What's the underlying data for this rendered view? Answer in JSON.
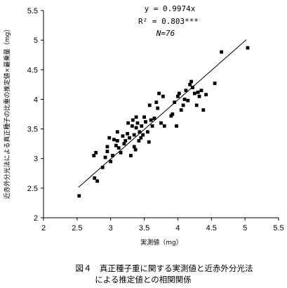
{
  "chart_data": {
    "type": "scatter",
    "xlabel": "実測値（mg）",
    "ylabel": "近赤外分光法による真正種子の比重の推定値×最乗量（mg）",
    "xlim": [
      2,
      5.5
    ],
    "ylim": [
      2,
      5.5
    ],
    "x_ticks": [
      "2",
      "2.5",
      "3",
      "3.5",
      "4",
      "4.5",
      "5",
      "5.5"
    ],
    "y_ticks": [
      "2",
      "2.5",
      "3",
      "3.5",
      "4",
      "4.5",
      "5",
      "5.5"
    ],
    "annotations": [
      "y = 0.9974x",
      "R² = 0.803***",
      "N=76"
    ],
    "regression_line": {
      "slope": 0.9974,
      "x_range": [
        2.52,
        5.02
      ]
    },
    "caption": [
      "図４　真正種子重に関する実測値と近赤外分光法",
      "による推定値との相関関係"
    ],
    "points": [
      [
        2.53,
        2.37
      ],
      [
        2.75,
        3.05
      ],
      [
        2.78,
        3.1
      ],
      [
        2.76,
        2.67
      ],
      [
        2.8,
        2.62
      ],
      [
        2.88,
        2.85
      ],
      [
        2.92,
        3.02
      ],
      [
        2.95,
        3.12
      ],
      [
        2.98,
        3.35
      ],
      [
        3.0,
        2.95
      ],
      [
        3.03,
        3.05
      ],
      [
        3.05,
        3.32
      ],
      [
        3.08,
        3.22
      ],
      [
        3.1,
        3.3
      ],
      [
        3.12,
        3.18
      ],
      [
        3.15,
        3.1
      ],
      [
        3.18,
        3.38
      ],
      [
        3.2,
        3.25
      ],
      [
        3.22,
        3.3
      ],
      [
        3.25,
        3.42
      ],
      [
        3.28,
        3.35
      ],
      [
        3.3,
        3.05
      ],
      [
        3.32,
        3.55
      ],
      [
        3.33,
        3.65
      ],
      [
        3.35,
        3.2
      ],
      [
        3.35,
        3.4
      ],
      [
        3.37,
        3.15
      ],
      [
        3.38,
        3.52
      ],
      [
        3.4,
        3.6
      ],
      [
        3.42,
        3.3
      ],
      [
        3.43,
        3.45
      ],
      [
        3.45,
        3.35
      ],
      [
        3.46,
        3.55
      ],
      [
        3.48,
        3.4
      ],
      [
        3.5,
        3.7
      ],
      [
        3.52,
        3.62
      ],
      [
        3.55,
        3.45
      ],
      [
        3.57,
        3.28
      ],
      [
        3.58,
        3.9
      ],
      [
        3.6,
        3.65
      ],
      [
        3.62,
        3.55
      ],
      [
        3.65,
        3.68
      ],
      [
        3.68,
        3.95
      ],
      [
        3.7,
        3.85
      ],
      [
        3.72,
        4.1
      ],
      [
        3.75,
        3.6
      ],
      [
        3.78,
        4.05
      ],
      [
        3.8,
        3.55
      ],
      [
        3.9,
        3.72
      ],
      [
        3.92,
        3.75
      ],
      [
        3.95,
        3.95
      ],
      [
        3.98,
        3.55
      ],
      [
        4.0,
        4.05
      ],
      [
        4.02,
        4.1
      ],
      [
        4.05,
        3.82
      ],
      [
        4.08,
        3.9
      ],
      [
        4.1,
        4.0
      ],
      [
        4.12,
        4.15
      ],
      [
        4.15,
        3.98
      ],
      [
        4.18,
        4.25
      ],
      [
        4.2,
        4.3
      ],
      [
        4.22,
        4.2
      ],
      [
        4.25,
        4.1
      ],
      [
        4.28,
        3.9
      ],
      [
        4.3,
        4.12
      ],
      [
        4.32,
        4.05
      ],
      [
        4.35,
        4.15
      ],
      [
        4.38,
        3.82
      ],
      [
        4.42,
        4.08
      ],
      [
        4.55,
        4.27
      ],
      [
        4.65,
        4.8
      ],
      [
        5.04,
        4.87
      ],
      [
        3.1,
        3.45
      ],
      [
        3.26,
        3.6
      ],
      [
        3.38,
        3.7
      ],
      [
        2.95,
        3.2
      ]
    ]
  }
}
